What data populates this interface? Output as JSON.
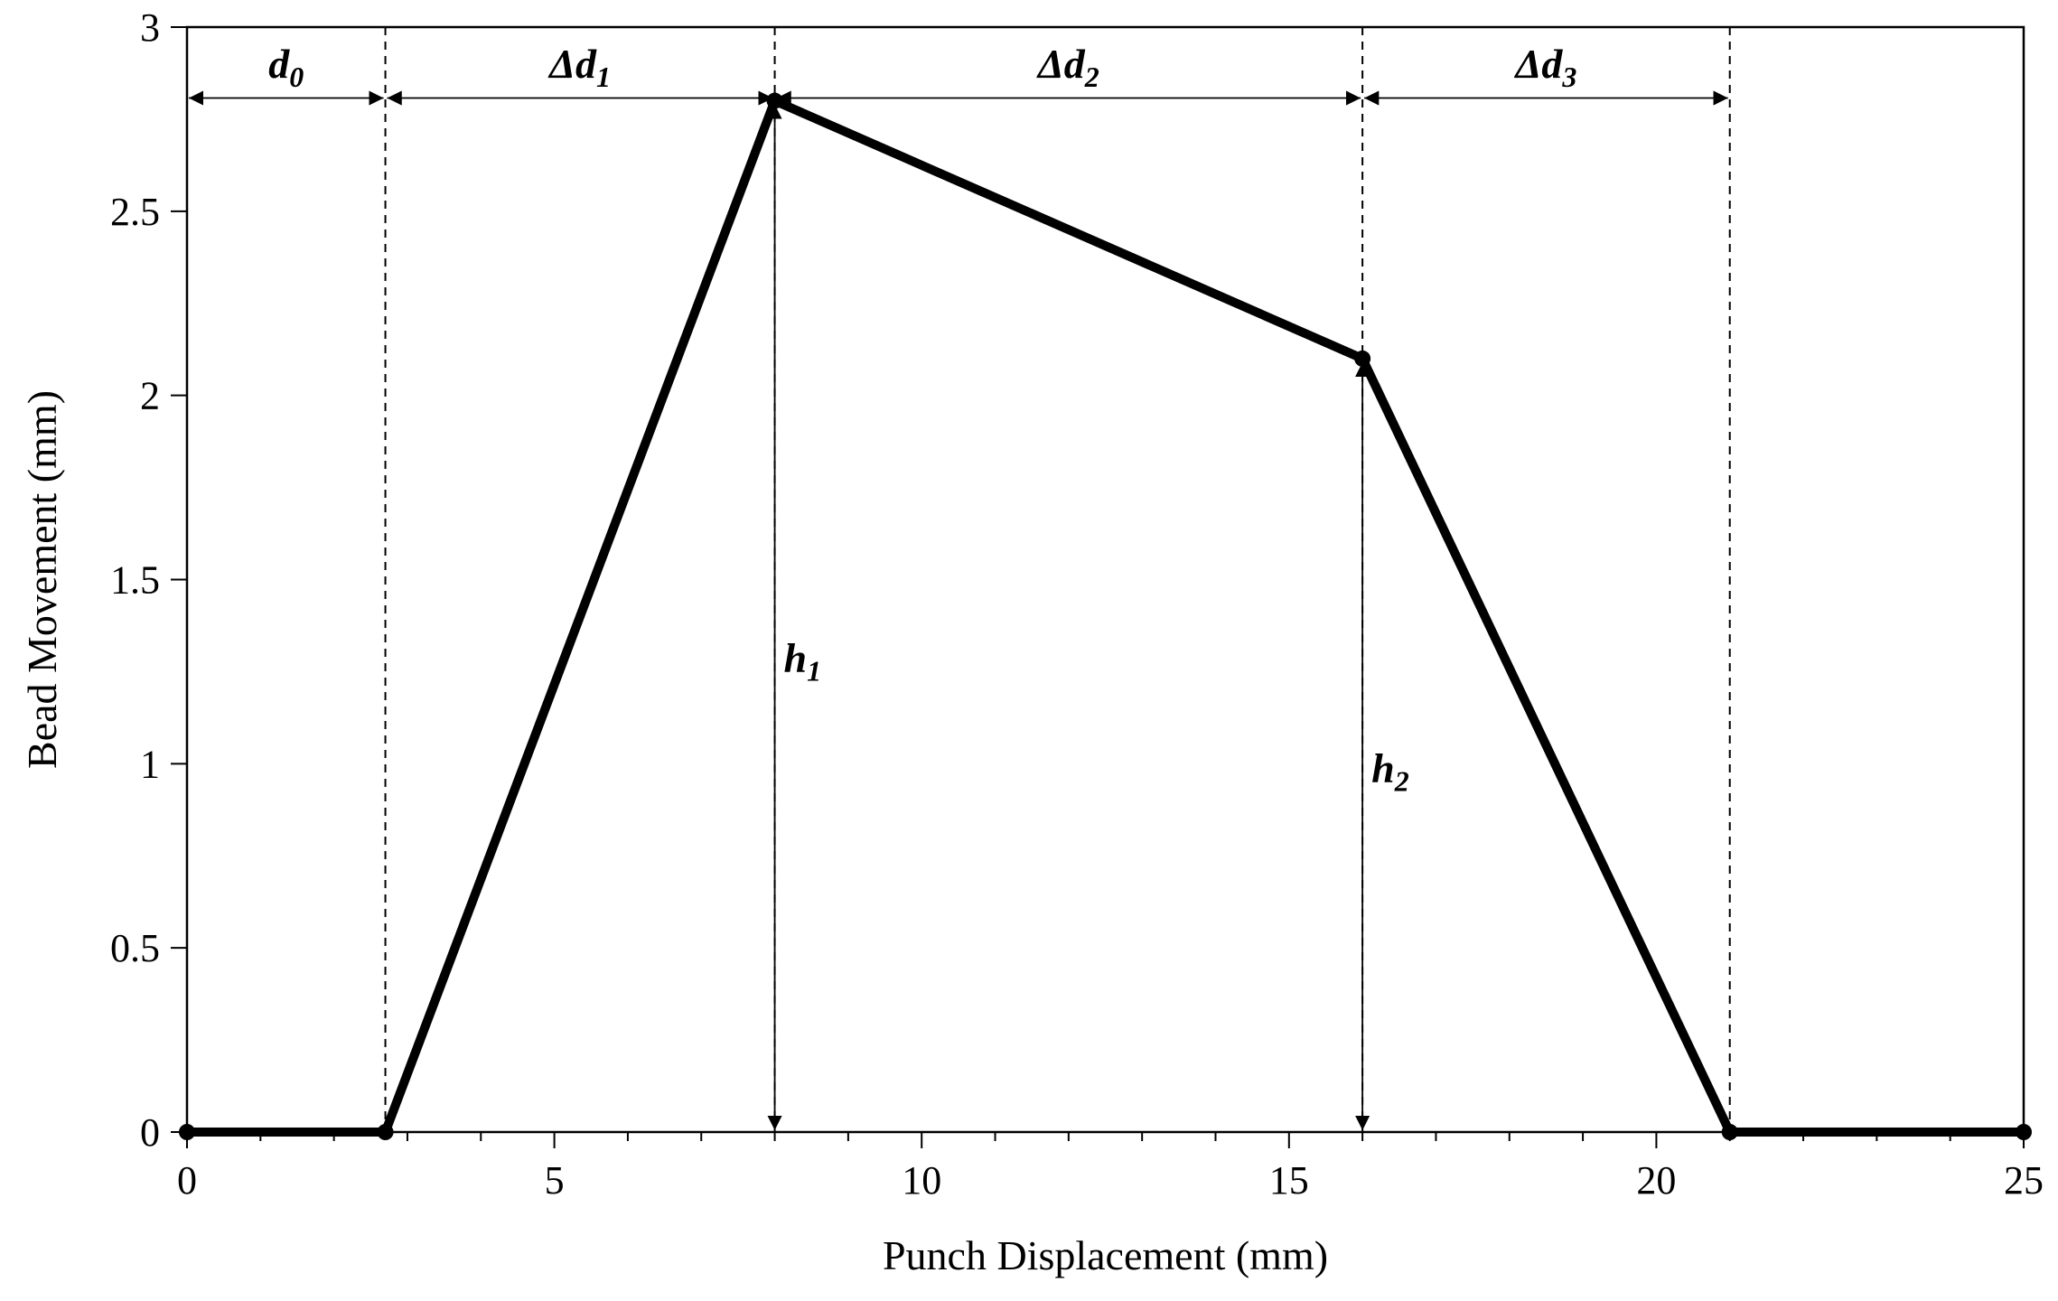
{
  "chart_data": {
    "type": "line",
    "title": "",
    "xlabel": "Punch Displacement (mm)",
    "ylabel": "Bead Movement (mm)",
    "xlim": [
      0,
      25
    ],
    "ylim": [
      0,
      3
    ],
    "x_ticks": [
      "0",
      "5",
      "10",
      "15",
      "20",
      "25"
    ],
    "y_ticks": [
      "0",
      "0.5",
      "1",
      "1.5",
      "2",
      "2.5",
      "3"
    ],
    "grid": false,
    "legend": "none",
    "series": [
      {
        "x": [
          0,
          2.7,
          8.0,
          16.0,
          21.0,
          25.0
        ],
        "y": [
          0,
          0,
          2.8,
          2.1,
          0,
          0
        ]
      }
    ],
    "vlines": [
      2.7,
      8.0,
      16.0,
      21.0
    ],
    "annotations": {
      "d0": {
        "main": "d",
        "sub": "0",
        "x_from": 0,
        "x_to": 2.7,
        "y": 2.8
      },
      "dd1": {
        "main": "Δd",
        "sub": "1",
        "x_from": 2.7,
        "x_to": 8.0,
        "y": 2.8
      },
      "dd2": {
        "main": "Δd",
        "sub": "2",
        "x_from": 8.0,
        "x_to": 16.0,
        "y": 2.8
      },
      "dd3": {
        "main": "Δd",
        "sub": "3",
        "x_from": 16.0,
        "x_to": 21.0,
        "y": 2.8
      },
      "h1": {
        "main": "h",
        "sub": "1",
        "x": 8.0,
        "y_from": 0,
        "y_to": 2.8
      },
      "h2": {
        "main": "h",
        "sub": "2",
        "x": 16.0,
        "y_from": 0,
        "y_to": 2.1
      }
    },
    "colors": {
      "line": "#000000",
      "axes": "#000000"
    }
  }
}
